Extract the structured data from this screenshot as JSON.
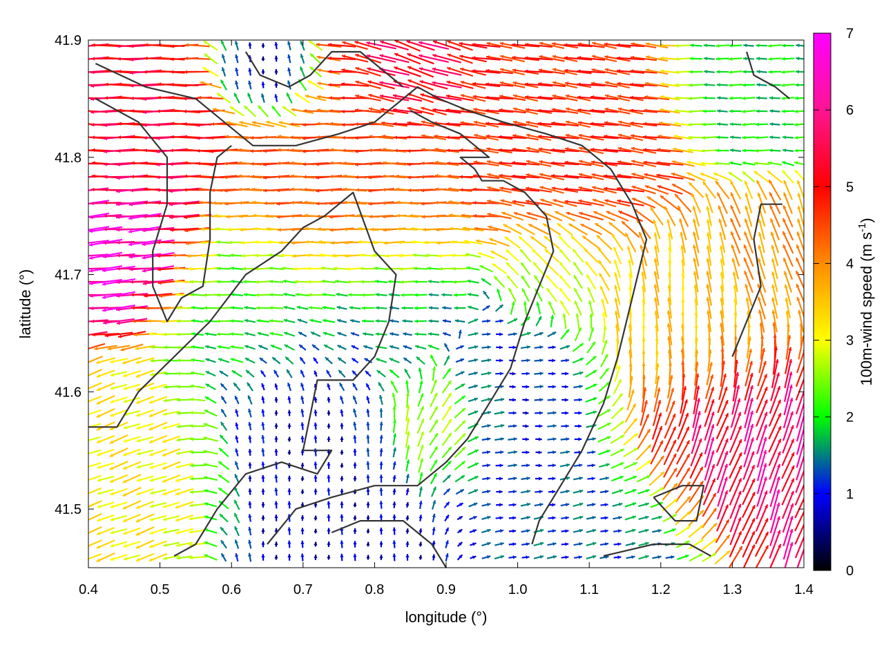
{
  "chart_data": {
    "type": "vector-field",
    "xlabel": "longitude (°)",
    "ylabel": "latitude (°)",
    "xlim": [
      0.4,
      1.4
    ],
    "ylim": [
      41.45,
      41.9
    ],
    "xticks": [
      "0.4",
      "0.5",
      "0.6",
      "0.7",
      "0.8",
      "0.9",
      "1.0",
      "1.1",
      "1.2",
      "1.3",
      "1.4"
    ],
    "yticks": [
      "41.5",
      "41.6",
      "41.7",
      "41.8",
      "41.9"
    ],
    "colorbar": {
      "label": "100m-wind speed (m s",
      "label_sup": "-1",
      "label_end": ")",
      "range": [
        0,
        7
      ],
      "ticks": [
        "0",
        "1",
        "2",
        "3",
        "4",
        "5",
        "6",
        "7"
      ],
      "palette": [
        "#000000",
        "#0000ff",
        "#00ff00",
        "#ffff00",
        "#ff8c00",
        "#ff0000",
        "#ff00ff"
      ]
    },
    "wind_regions": [
      {
        "lon": 0.45,
        "lat": 41.72,
        "r": 0.07,
        "speed": 6.8,
        "dir": 185
      },
      {
        "lon": 0.48,
        "lat": 41.8,
        "r": 0.06,
        "speed": 6.0,
        "dir": 180
      },
      {
        "lon": 0.78,
        "lat": 41.78,
        "r": 0.12,
        "speed": 5.2,
        "dir": 180
      },
      {
        "lon": 1.05,
        "lat": 41.82,
        "r": 0.11,
        "speed": 5.5,
        "dir": 172
      },
      {
        "lon": 0.85,
        "lat": 41.87,
        "r": 0.06,
        "speed": 6.2,
        "dir": 160
      },
      {
        "lon": 0.66,
        "lat": 41.87,
        "r": 0.04,
        "speed": 0.6,
        "dir": 90
      },
      {
        "lon": 0.72,
        "lat": 41.56,
        "r": 0.12,
        "speed": 0.9,
        "dir": 90
      },
      {
        "lon": 0.98,
        "lat": 41.6,
        "r": 0.1,
        "speed": 1.2,
        "dir": 0
      },
      {
        "lon": 0.82,
        "lat": 41.66,
        "r": 0.1,
        "speed": 1.8,
        "dir": 180
      },
      {
        "lon": 0.88,
        "lat": 41.58,
        "r": 0.06,
        "speed": 4.4,
        "dir": 70
      },
      {
        "lon": 1.28,
        "lat": 41.56,
        "r": 0.09,
        "speed": 6.3,
        "dir": 70
      },
      {
        "lon": 1.22,
        "lat": 41.66,
        "r": 0.09,
        "speed": 4.0,
        "dir": 95
      },
      {
        "lon": 0.48,
        "lat": 41.54,
        "r": 0.09,
        "speed": 3.7,
        "dir": 200
      },
      {
        "lon": 0.62,
        "lat": 41.67,
        "r": 0.08,
        "speed": 2.5,
        "dir": 180
      },
      {
        "lon": 1.12,
        "lat": 41.48,
        "r": 0.09,
        "speed": 1.5,
        "dir": 10
      },
      {
        "lon": 1.33,
        "lat": 41.86,
        "r": 0.07,
        "speed": 2.2,
        "dir": 180
      },
      {
        "lon": 1.05,
        "lat": 41.7,
        "r": 0.06,
        "speed": 3.3,
        "dir": 130
      },
      {
        "lon": 1.35,
        "lat": 41.72,
        "r": 0.06,
        "speed": 4.6,
        "dir": 110
      }
    ],
    "contours": [
      [
        [
          0.41,
          41.88
        ],
        [
          0.48,
          41.86
        ],
        [
          0.55,
          41.85
        ],
        [
          0.59,
          41.83
        ],
        [
          0.63,
          41.81
        ],
        [
          0.69,
          41.81
        ],
        [
          0.75,
          41.82
        ],
        [
          0.8,
          41.83
        ],
        [
          0.84,
          41.85
        ],
        [
          0.86,
          41.86
        ],
        [
          0.89,
          41.85
        ],
        [
          0.93,
          41.84
        ],
        [
          0.98,
          41.83
        ],
        [
          1.04,
          41.82
        ],
        [
          1.09,
          41.81
        ],
        [
          1.13,
          41.79
        ],
        [
          1.16,
          41.76
        ],
        [
          1.18,
          41.73
        ],
        [
          1.16,
          41.68
        ],
        [
          1.14,
          41.63
        ],
        [
          1.12,
          41.59
        ],
        [
          1.09,
          41.55
        ],
        [
          1.06,
          41.52
        ],
        [
          1.03,
          41.49
        ],
        [
          1.02,
          41.47
        ]
      ],
      [
        [
          0.41,
          41.85
        ],
        [
          0.47,
          41.83
        ],
        [
          0.51,
          41.8
        ],
        [
          0.51,
          41.76
        ],
        [
          0.49,
          41.72
        ],
        [
          0.49,
          41.69
        ],
        [
          0.51,
          41.66
        ],
        [
          0.53,
          41.68
        ],
        [
          0.56,
          41.69
        ],
        [
          0.57,
          41.73
        ],
        [
          0.57,
          41.77
        ],
        [
          0.58,
          41.8
        ],
        [
          0.6,
          41.81
        ]
      ],
      [
        [
          0.4,
          41.57
        ],
        [
          0.44,
          41.57
        ],
        [
          0.47,
          41.6
        ],
        [
          0.52,
          41.63
        ],
        [
          0.57,
          41.66
        ],
        [
          0.62,
          41.7
        ],
        [
          0.67,
          41.72
        ],
        [
          0.7,
          41.74
        ],
        [
          0.73,
          41.75
        ],
        [
          0.77,
          41.77
        ],
        [
          0.8,
          41.72
        ],
        [
          0.83,
          41.7
        ],
        [
          0.82,
          41.66
        ],
        [
          0.8,
          41.63
        ],
        [
          0.77,
          41.61
        ],
        [
          0.72,
          41.61
        ],
        [
          0.71,
          41.58
        ],
        [
          0.7,
          41.55
        ],
        [
          0.74,
          41.55
        ],
        [
          0.72,
          41.53
        ],
        [
          0.67,
          41.54
        ],
        [
          0.62,
          41.53
        ],
        [
          0.58,
          41.5
        ],
        [
          0.55,
          41.47
        ],
        [
          0.52,
          41.46
        ]
      ],
      [
        [
          0.65,
          41.47
        ],
        [
          0.69,
          41.5
        ],
        [
          0.74,
          41.51
        ],
        [
          0.8,
          41.52
        ],
        [
          0.86,
          41.52
        ],
        [
          0.9,
          41.54
        ],
        [
          0.93,
          41.56
        ],
        [
          0.96,
          41.59
        ],
        [
          0.99,
          41.62
        ],
        [
          1.01,
          41.66
        ],
        [
          1.03,
          41.69
        ],
        [
          1.05,
          41.72
        ],
        [
          1.04,
          41.75
        ],
        [
          1.01,
          41.77
        ],
        [
          0.98,
          41.78
        ],
        [
          0.95,
          41.78
        ],
        [
          0.94,
          41.79
        ],
        [
          0.92,
          41.8
        ],
        [
          0.96,
          41.8
        ],
        [
          0.92,
          41.82
        ],
        [
          0.88,
          41.83
        ],
        [
          0.85,
          41.84
        ]
      ],
      [
        [
          0.74,
          41.48
        ],
        [
          0.78,
          41.49
        ],
        [
          0.84,
          41.49
        ],
        [
          0.88,
          41.47
        ],
        [
          0.9,
          41.45
        ]
      ],
      [
        [
          0.62,
          41.89
        ],
        [
          0.64,
          41.87
        ],
        [
          0.68,
          41.86
        ],
        [
          0.71,
          41.87
        ],
        [
          0.74,
          41.89
        ],
        [
          0.78,
          41.89
        ],
        [
          0.82,
          41.87
        ],
        [
          0.84,
          41.86
        ]
      ],
      [
        [
          1.19,
          41.51
        ],
        [
          1.23,
          41.52
        ],
        [
          1.26,
          41.52
        ],
        [
          1.25,
          41.49
        ],
        [
          1.22,
          41.49
        ],
        [
          1.19,
          41.51
        ]
      ],
      [
        [
          1.12,
          41.46
        ],
        [
          1.19,
          41.47
        ],
        [
          1.24,
          41.47
        ],
        [
          1.27,
          41.46
        ]
      ],
      [
        [
          1.32,
          41.89
        ],
        [
          1.33,
          41.87
        ],
        [
          1.36,
          41.86
        ],
        [
          1.38,
          41.85
        ]
      ],
      [
        [
          1.3,
          41.63
        ],
        [
          1.32,
          41.66
        ],
        [
          1.34,
          41.69
        ],
        [
          1.33,
          41.73
        ],
        [
          1.34,
          41.76
        ],
        [
          1.37,
          41.76
        ]
      ]
    ]
  }
}
